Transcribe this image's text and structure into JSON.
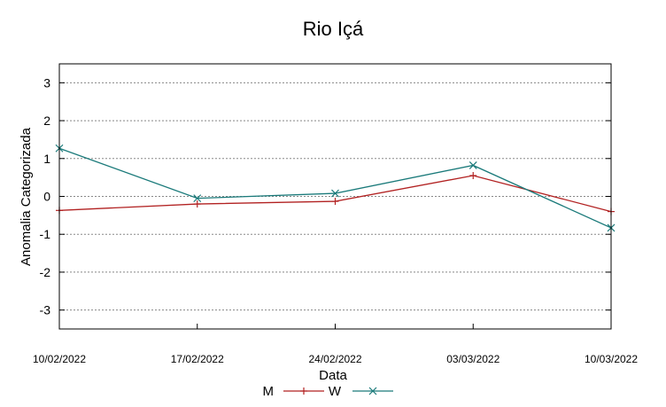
{
  "chart_data": {
    "type": "line",
    "title": "Rio Içá",
    "xlabel": "Data",
    "ylabel": "Anomalia Categorizada",
    "categories": [
      "10/02/2022",
      "17/02/2022",
      "24/02/2022",
      "03/03/2022",
      "10/03/2022"
    ],
    "ylim": [
      -3.5,
      3.5
    ],
    "yticks": [
      3,
      2,
      1,
      0,
      -1,
      -2,
      -3
    ],
    "grid": true,
    "legend_position": "bottom",
    "series": [
      {
        "name": "M",
        "color": "#b22222",
        "marker": "plus",
        "values": [
          -0.37,
          -0.2,
          -0.13,
          0.55,
          -0.4
        ]
      },
      {
        "name": "W",
        "color": "#1a7a7a",
        "marker": "cross",
        "values": [
          1.27,
          -0.05,
          0.08,
          0.82,
          -0.83
        ]
      }
    ]
  }
}
